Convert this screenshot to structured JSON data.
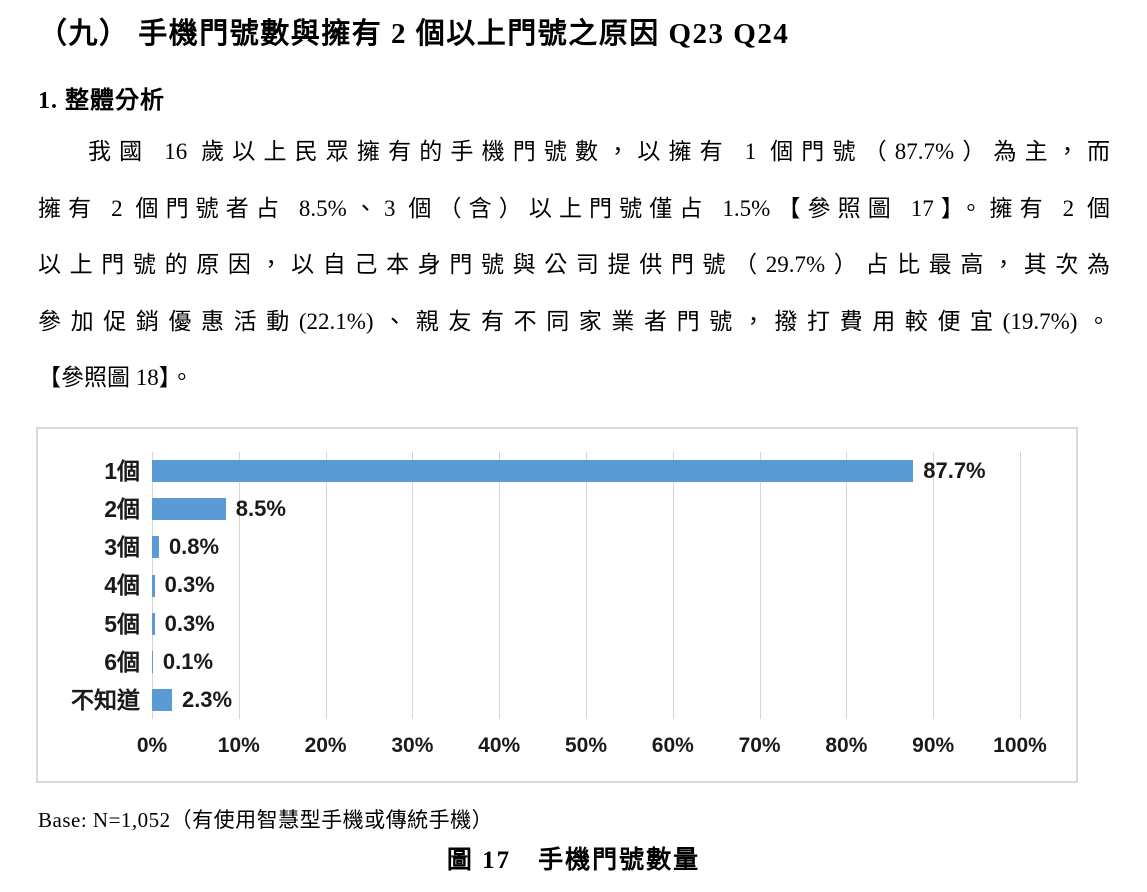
{
  "page": {
    "title": "（九） 手機門號數與擁有 2 個以上門號之原因 Q23 Q24",
    "section_heading": "1. 整體分析",
    "paragraph_lines": [
      "我國 16 歲以上民眾擁有的手機門號數，以擁有 1 個門號（87.7%）為主，而",
      "擁有 2 個門號者占 8.5%、3 個（含）以上門號僅占 1.5%【參照圖 17】。擁有 2 個",
      "以上門號的原因，以自己本身門號與公司提供門號（29.7%）占比最高，其次為",
      "參加促銷優惠活動(22.1%)、親友有不同家業者門號，撥打費用較便宜(19.7%)。",
      "【參照圖 18】。"
    ],
    "base_note": "Base: N=1,052（有使用智慧型手機或傳統手機）",
    "figure_caption": "圖 17　手機門號數量"
  },
  "chart_data": {
    "type": "bar",
    "orientation": "horizontal",
    "title": "",
    "xlabel": "",
    "ylabel": "",
    "categories": [
      "1個",
      "2個",
      "3個",
      "4個",
      "5個",
      "6個",
      "不知道"
    ],
    "values": [
      87.7,
      8.5,
      0.8,
      0.3,
      0.3,
      0.1,
      2.3
    ],
    "value_labels": [
      "87.7%",
      "8.5%",
      "0.8%",
      "0.3%",
      "0.3%",
      "0.1%",
      "2.3%"
    ],
    "x_ticks": [
      "0%",
      "10%",
      "20%",
      "30%",
      "40%",
      "50%",
      "60%",
      "70%",
      "80%",
      "90%",
      "100%"
    ],
    "xlim": [
      0,
      100
    ],
    "grid": true,
    "legend": false,
    "bar_color": "#5b9bd5",
    "gridline_color": "#d6d6d6",
    "frame_border_color": "#d9d9d9"
  }
}
